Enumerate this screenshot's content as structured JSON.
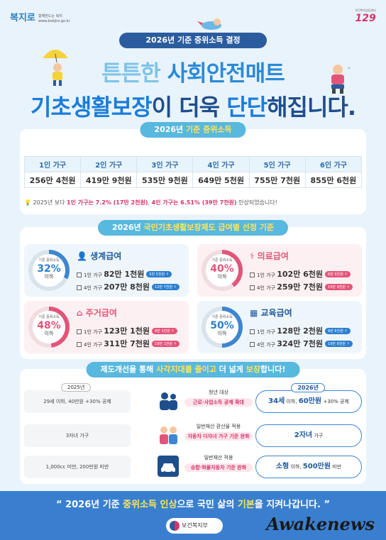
{
  "header": {
    "logo_mark": "복지로",
    "logo_sub1": "함께만드는 복지",
    "logo_sub2": "www.bokjiro.go.kr",
    "logo129_sub": "보건복지상담센터",
    "logo129": "129",
    "top_pill": "2026년 기준 중위소득 결정"
  },
  "title": {
    "line1_a": "튼튼한 ",
    "line1_b": "사회안전매트",
    "line2_a": "기초생활보장",
    "line2_b": "이 더욱 ",
    "line2_c": "단단",
    "line2_d": "해집니다."
  },
  "income": {
    "pill_a": "2026년 ",
    "pill_b": "기준 중위소득",
    "headers": [
      "1인 가구",
      "2인 가구",
      "3인 가구",
      "4인 가구",
      "5인 가구",
      "6인 가구"
    ],
    "values": [
      "256만 4천원",
      "419만 9천원",
      "535만 9천원",
      "649만 5천원",
      "755만 7천원",
      "855만 6천원"
    ],
    "note_a": "2025년 보다 ",
    "note_b": "1인 가구는 7.2% (17만 2천원)",
    "note_c": ", ",
    "note_d": "4인 가구는 6.51% (39만 7천원)",
    "note_e": " 인상되었습니다!"
  },
  "benefit": {
    "pill_a": "2026년 ",
    "pill_b": "국민기초생활보장제도 급여별 선정 기준",
    "cards": [
      {
        "title": "생계급여",
        "ring_top": "기준 중위소득",
        "pct": "32%",
        "below": "이하",
        "r1_label": "1인 가구",
        "r1_val": "82만 1천원",
        "r1_tag": "5만 5천원 ↑",
        "r2_label": "4인 가구",
        "r2_val": "207만 8천원",
        "r2_tag": "12만 7천원 ↑"
      },
      {
        "title": "의료급여",
        "ring_top": "기준 중위소득",
        "pct": "40%",
        "below": "이하",
        "r1_label": "1인 가구",
        "r1_val": "102만 6천원",
        "r1_tag": "6만 9천원 ↑",
        "r2_label": "4인 가구",
        "r2_val": "259만 7천원",
        "r2_tag": "15만 9천원 ↑"
      },
      {
        "title": "주거급여",
        "ring_top": "기준 중위소득",
        "pct": "48%",
        "below": "이하",
        "r1_label": "1인 가구",
        "r1_val": "123만 1천원",
        "r1_tag": "8만 3천원 ↑",
        "r2_label": "4인 가구",
        "r2_val": "311만 7천원",
        "r2_tag": "19만 1천원 ↑"
      },
      {
        "title": "교육급여",
        "ring_top": "기준 중위소득",
        "pct": "50%",
        "below": "이하",
        "r1_label": "1인 가구",
        "r1_val": "128만 2천원",
        "r1_tag": "8만 6천원 ↑",
        "r2_label": "4인 가구",
        "r2_val": "324만 7천원",
        "r2_tag": "19만 8천원 ↑"
      }
    ]
  },
  "reform": {
    "pill_a": "제도개선을 통해 ",
    "pill_b": "사각지대를 줄이고",
    "pill_c": " 더 넓게 ",
    "pill_d": "보장",
    "pill_e": "합니다!",
    "year_left": "2025년",
    "year_right": "2026년",
    "rows": [
      {
        "left": "29세 이하, 40만원 +30% 공제",
        "mid1": "청년 대상",
        "mid2": "근로·사업소득 공제 확대",
        "right_big": "34세",
        "right_rest": " 이하, ",
        "right_big2": "60만원",
        "right_rest2": " +30% 공제"
      },
      {
        "left": "3자녀 가구",
        "mid1": "일반재산 환산율 적용",
        "mid2": "자동차 다자녀 가구 기준 완화",
        "right_big": "2자녀",
        "right_rest": " 가구",
        "right_big2": "",
        "right_rest2": ""
      },
      {
        "left": "1,000cc 미만, 200만원 미만",
        "mid1": "일반재산 적용",
        "mid2": "승합·화물자동차 기준 완화",
        "right_big": "소형",
        "right_rest": " 이하, ",
        "right_big2": "500만원",
        "right_rest2": " 미만"
      }
    ]
  },
  "footer": {
    "slogan_a": "“ 2026년 기준 ",
    "slogan_b": "중위소득 인상",
    "slogan_c": "으로 국민 삶의 ",
    "slogan_d": "기본",
    "slogan_e": "을 지켜나갑니다. ”",
    "ministry": "보건복지부",
    "watermark": "Awakenews"
  },
  "colors": {
    "background": "#e9f3fb",
    "navy": "#2b5c9e",
    "accent_blue": "#58b8de",
    "pink": "#e2557a"
  }
}
